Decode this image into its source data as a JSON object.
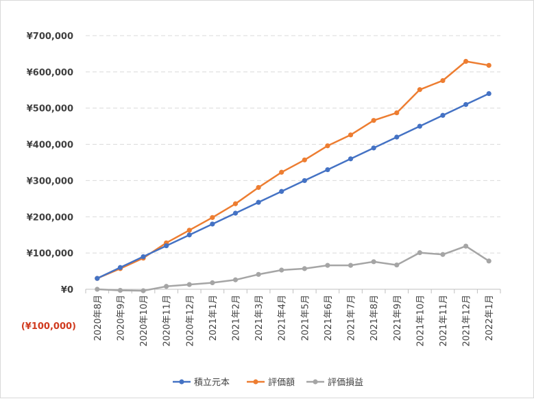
{
  "chart_data": {
    "type": "line",
    "categories": [
      "2020年8月",
      "2020年9月",
      "2020年10月",
      "2020年11月",
      "2020年12月",
      "2021年1月",
      "2021年2月",
      "2021年3月",
      "2021年4月",
      "2021年5月",
      "2021年6月",
      "2021年7月",
      "2021年8月",
      "2021年9月",
      "2021年10月",
      "2021年11月",
      "2021年12月",
      "2022年1月"
    ],
    "y_ticks": [
      {
        "value": 700000,
        "label": "¥700,000"
      },
      {
        "value": 600000,
        "label": "¥600,000"
      },
      {
        "value": 500000,
        "label": "¥500,000"
      },
      {
        "value": 400000,
        "label": "¥400,000"
      },
      {
        "value": 300000,
        "label": "¥300,000"
      },
      {
        "value": 200000,
        "label": "¥200,000"
      },
      {
        "value": 100000,
        "label": "¥100,000"
      },
      {
        "value": 0,
        "label": "¥0"
      },
      {
        "value": -100000,
        "label": "(¥100,000)"
      }
    ],
    "ylim": [
      -100000,
      700000
    ],
    "grid": true,
    "legend_position": "bottom",
    "series": [
      {
        "name": "積立元本",
        "color": "#4472c4",
        "values": [
          30000,
          60000,
          90000,
          120000,
          150000,
          180000,
          210000,
          240000,
          270000,
          300000,
          330000,
          360000,
          390000,
          420000,
          450000,
          480000,
          510000,
          540000
        ]
      },
      {
        "name": "評価額",
        "color": "#ed7d31",
        "values": [
          30000,
          57000,
          86000,
          128000,
          163000,
          198000,
          236000,
          281000,
          323000,
          357000,
          396000,
          426000,
          466000,
          487000,
          551000,
          576000,
          629000,
          618000
        ]
      },
      {
        "name": "評価損益",
        "color": "#a5a5a5",
        "values": [
          0,
          -3000,
          -4000,
          8000,
          13000,
          18000,
          26000,
          41000,
          53000,
          57000,
          66000,
          66000,
          76000,
          67000,
          101000,
          96000,
          119000,
          78000
        ]
      }
    ],
    "negative_label_color": "#d03a1e"
  }
}
